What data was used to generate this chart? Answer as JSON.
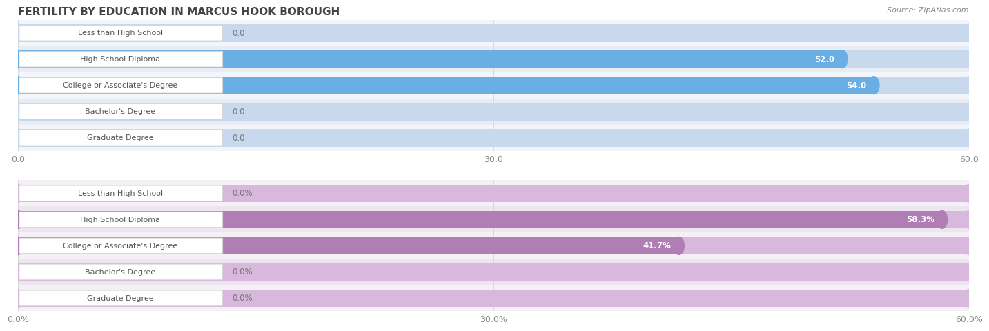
{
  "title": "Fertility by Education in Marcus Hook borough",
  "title_display": "FERTILITY BY EDUCATION IN MARCUS HOOK BOROUGH",
  "source": "Source: ZipAtlas.com",
  "top_chart": {
    "categories": [
      "Less than High School",
      "High School Diploma",
      "College or Associate's Degree",
      "Bachelor's Degree",
      "Graduate Degree"
    ],
    "values": [
      0.0,
      52.0,
      54.0,
      0.0,
      0.0
    ],
    "x_ticks": [
      0.0,
      30.0,
      60.0
    ],
    "x_tick_labels": [
      "0.0",
      "30.0",
      "60.0"
    ],
    "x_max": 60.0,
    "bar_color": "#6aaee6",
    "bar_bg_color": "#c8d9ee",
    "row_colors": [
      "#f2f5fa",
      "#e8edf5",
      "#f2f5fa",
      "#e8edf5",
      "#f2f5fa"
    ],
    "value_suffix": ""
  },
  "bottom_chart": {
    "categories": [
      "Less than High School",
      "High School Diploma",
      "College or Associate's Degree",
      "Bachelor's Degree",
      "Graduate Degree"
    ],
    "values": [
      0.0,
      58.3,
      41.7,
      0.0,
      0.0
    ],
    "x_ticks": [
      0.0,
      30.0,
      60.0
    ],
    "x_tick_labels": [
      "0.0%",
      "30.0%",
      "60.0%"
    ],
    "x_max": 60.0,
    "bar_color": "#b07db5",
    "bar_bg_color": "#d9b8dd",
    "row_colors": [
      "#f5f0f6",
      "#ede5ef",
      "#f5f0f6",
      "#ede5ef",
      "#f5f0f6"
    ],
    "value_suffix": "%"
  },
  "bg_color": "#ffffff",
  "label_text_color": "#555555",
  "label_box_facecolor": "#ffffff",
  "label_box_edgecolor": "#cccccc",
  "grid_color": "#d0d0d0",
  "title_color": "#444444",
  "title_fontsize": 11,
  "source_fontsize": 8,
  "tick_fontsize": 9,
  "bar_label_fontsize": 8,
  "value_fontsize": 8.5
}
